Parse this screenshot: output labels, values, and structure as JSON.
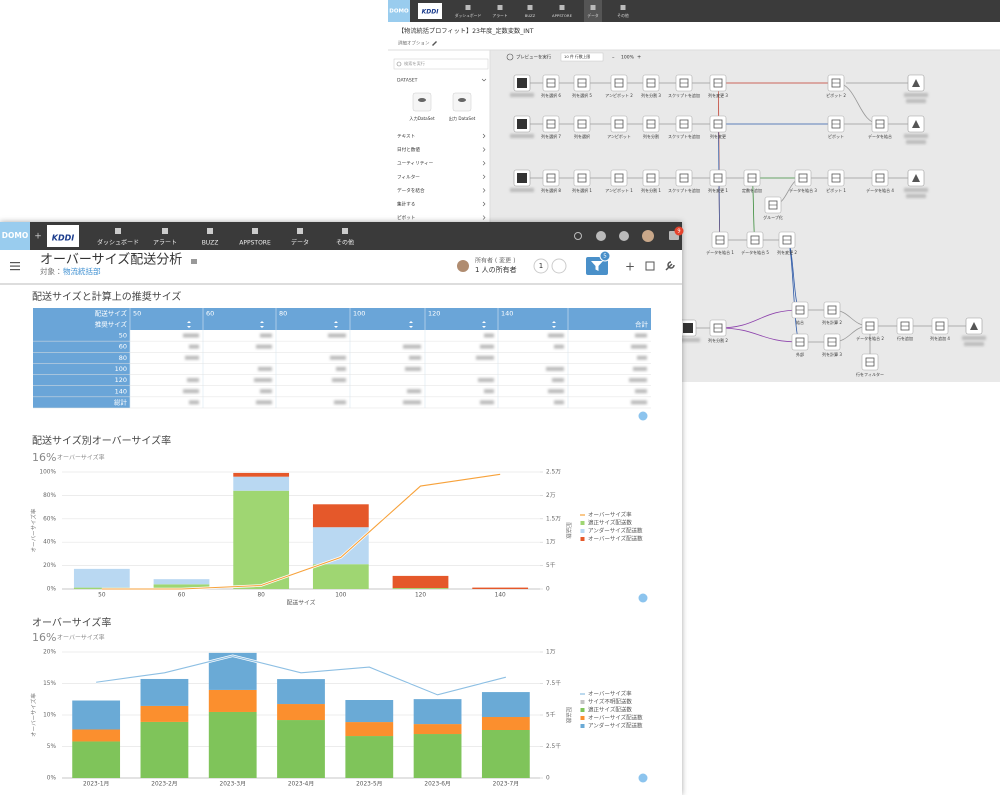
{
  "back_window": {
    "logo": "DOMO",
    "brand": "KDDI",
    "nav": [
      "ダッシュボード",
      "アラート",
      "BUZZ",
      "APPSTORE",
      "データ",
      "その他"
    ],
    "title": "【物流統括プロフィット】23年度_定数変数_INT",
    "subtitle": "詳細オプション",
    "toolbar": {
      "preview": "プレビューを実行",
      "rows": "10 件 行数上限",
      "zoom": "100%"
    },
    "search": "検索を実行",
    "dataset_header": "DATASET",
    "dataset_items": [
      "入力DataSet",
      "出力 DataSet"
    ],
    "categories": [
      "テキスト",
      "日付と数値",
      "ユーティリティー",
      "フィルター",
      "データを結合",
      "集計する",
      "ピボット"
    ],
    "nodes": [
      "列を選択 6",
      "列を選択 5",
      "アンピボット 2",
      "列を分割 3",
      "スクリプトを追加",
      "列を変更 3",
      "ピボット 2",
      "列を選択 7",
      "列を選択",
      "アンピボット",
      "列を分割",
      "スクリプトを追加",
      "列を変更",
      "ピボット",
      "データを結合",
      "列を選択 8",
      "列を選択 1",
      "アンピボット 1",
      "列を分割 1",
      "スクリプトを追加",
      "列を変更 1",
      "定数を追加",
      "データを結合 3",
      "ピボット 1",
      "データを結合 4",
      "グループ化",
      "データを結合 1",
      "データを結合 5",
      "列を変更 2",
      "列を分割 2",
      "結合",
      "外部",
      "列を計算 2",
      "列を計算 3",
      "データを結合 2",
      "行を追加",
      "列を追加 4",
      "行をフィルター"
    ]
  },
  "front_window": {
    "logo": "DOMO",
    "brand": "KDDI",
    "nav": [
      "ダッシュボード",
      "アラート",
      "BUZZ",
      "APPSTORE",
      "データ",
      "その他"
    ],
    "notification_count": "9",
    "title": "オーバーサイズ配送分析",
    "target_label": "対象：",
    "target": "物流統括部",
    "owner": "所有者 ( 変更 )",
    "owner_count": "1 人の所有者",
    "share_count": "1",
    "filter_count": "5"
  },
  "table": {
    "title": "配送サイズと計算上の推奨サイズ",
    "row_header": "配送サイズ",
    "col_header": "推奨サイズ",
    "columns": [
      "50",
      "60",
      "80",
      "100",
      "120",
      "140"
    ],
    "total_col": "合計",
    "rows": [
      "50",
      "60",
      "80",
      "100",
      "120",
      "140"
    ],
    "total_row": "総計"
  },
  "chart_data": [
    {
      "type": "bar",
      "stacked": true,
      "title": "配送サイズ別オーバーサイズ率",
      "summary_value": "16%",
      "summary_label": "オーバーサイズ率",
      "x_label": "配送サイズ",
      "y_label": "オーバーサイズ率",
      "y2_label": "配送数",
      "categories": [
        "50",
        "60",
        "80",
        "100",
        "120",
        "140"
      ],
      "ylim": [
        0,
        100
      ],
      "yticks": [
        {
          "value": 0,
          "label": "0%"
        },
        {
          "value": 20,
          "label": "20%"
        },
        {
          "value": 40,
          "label": "40%"
        },
        {
          "value": 60,
          "label": "60%"
        },
        {
          "value": 80,
          "label": "80%"
        },
        {
          "value": 100,
          "label": "100%"
        }
      ],
      "y2lim": [
        0,
        25000
      ],
      "y2ticks": [
        0,
        {
          "value": 5000,
          "label": "5千"
        },
        {
          "value": 10000,
          "label": "1万"
        },
        {
          "value": 15000,
          "label": "1.5万"
        },
        {
          "value": 20000,
          "label": "2万"
        },
        {
          "value": 25000,
          "label": "2.5万"
        }
      ],
      "grid": true,
      "series": [
        {
          "name": "オーバーサイズ率",
          "type": "line",
          "color": "#f7a23b",
          "values": [
            0,
            0,
            3,
            27,
            88,
            98
          ]
        },
        {
          "name": "適正サイズ配送数",
          "type": "bar",
          "axis": "y2",
          "color": "#9fd672",
          "values": [
            300,
            1000,
            21000,
            5300,
            200,
            0
          ]
        },
        {
          "name": "アンダーサイズ配送数",
          "type": "bar",
          "axis": "y2",
          "color": "#b9d8f2",
          "values": [
            4000,
            1100,
            3000,
            7900,
            0,
            0
          ]
        },
        {
          "name": "オーバーサイズ配送数",
          "type": "bar",
          "axis": "y2",
          "color": "#e5582a",
          "values": [
            0,
            0,
            800,
            4900,
            2600,
            300
          ]
        }
      ]
    },
    {
      "type": "bar",
      "stacked": true,
      "title": "オーバーサイズ率",
      "summary_value": "16%",
      "summary_label": "オーバーサイズ率",
      "y_label": "オーバーサイズ率",
      "y2_label": "配送数",
      "categories": [
        "2023-1月",
        "2023-2月",
        "2023-3月",
        "2023-4月",
        "2023-5月",
        "2023-6月",
        "2023-7月"
      ],
      "ylim": [
        0,
        20
      ],
      "yticks": [
        {
          "value": 0,
          "label": "0%"
        },
        {
          "value": 5,
          "label": "5%"
        },
        {
          "value": 10,
          "label": "10%"
        },
        {
          "value": 15,
          "label": "15%"
        },
        {
          "value": 20,
          "label": "20%"
        }
      ],
      "y2lim": [
        0,
        10000
      ],
      "y2ticks": [
        0,
        {
          "value": 2500,
          "label": "2.5千"
        },
        {
          "value": 5000,
          "label": "5千"
        },
        {
          "value": 7500,
          "label": "7.5千"
        },
        {
          "value": 10000,
          "label": "1万"
        }
      ],
      "grid": true,
      "series": [
        {
          "name": "オーバーサイズ率",
          "type": "line",
          "color": "#8dbfe3",
          "values": [
            15.2,
            16.7,
            19.4,
            16.7,
            17.6,
            13.2,
            16.0
          ]
        },
        {
          "name": "サイズ不明配送数",
          "type": "bar",
          "axis": "y2",
          "color": "#c4c4c4",
          "values": [
            0,
            0,
            0,
            0,
            0,
            0,
            0
          ]
        },
        {
          "name": "適正サイズ配送数",
          "type": "bar",
          "axis": "y2",
          "color": "#7fc45a",
          "values": [
            2900,
            4450,
            5240,
            4600,
            3330,
            3490,
            3810
          ]
        },
        {
          "name": "オーバーサイズ配送数",
          "type": "bar",
          "axis": "y2",
          "color": "#fb8f2e",
          "values": [
            950,
            1270,
            1750,
            1270,
            1110,
            790,
            1030
          ]
        },
        {
          "name": "アンダーサイズ配送数",
          "type": "bar",
          "axis": "y2",
          "color": "#6aaad6",
          "values": [
            2300,
            2140,
            2940,
            1980,
            1750,
            1980,
            1980
          ]
        }
      ]
    }
  ]
}
